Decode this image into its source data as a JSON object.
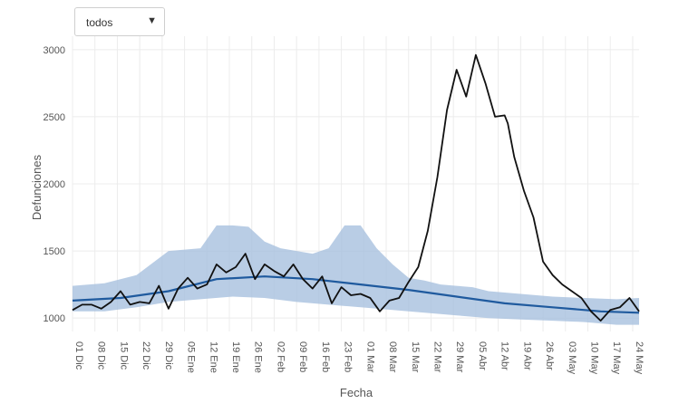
{
  "filter": {
    "selected": "todos",
    "arrow": "▼"
  },
  "chart_data": {
    "type": "line",
    "xlabel": "Fecha",
    "ylabel": "Defunciones",
    "ylim": [
      900,
      3100
    ],
    "grid": true,
    "y_ticks": [
      1000,
      1500,
      2000,
      2500,
      3000
    ],
    "x_ticks": [
      "01 Dic",
      "08 Dic",
      "15 Dic",
      "22 Dic",
      "29 Dic",
      "05 Ene",
      "12 Ene",
      "19 Ene",
      "26 Ene",
      "02 Feb",
      "09 Feb",
      "16 Feb",
      "23 Feb",
      "01 Mar",
      "08 Mar",
      "15 Mar",
      "22 Mar",
      "29 Mar",
      "05 Abr",
      "12 Abr",
      "19 Abr",
      "26 Abr",
      "03 May",
      "10 May",
      "17 May",
      "24 May"
    ],
    "x_day_range": [
      0,
      177
    ],
    "colors": {
      "observed": "#111111",
      "expected": "#1f5a9e",
      "band": "#a7c0de"
    },
    "series": [
      {
        "kind": "observed",
        "x": [
          0,
          3,
          6,
          9,
          12,
          15,
          18,
          21,
          24,
          27,
          30,
          33,
          36,
          39,
          42,
          45,
          48,
          51,
          54,
          57,
          60,
          63,
          66,
          69,
          72,
          75,
          78,
          81,
          84,
          87,
          90,
          93,
          96,
          99,
          102,
          105,
          108,
          111,
          114,
          117,
          120,
          123,
          126,
          129,
          132,
          135,
          136,
          138,
          141,
          144,
          147,
          150,
          153,
          156,
          159,
          162,
          165,
          168,
          171,
          174,
          177
        ],
        "values": [
          1060,
          1100,
          1100,
          1070,
          1120,
          1200,
          1100,
          1120,
          1110,
          1240,
          1070,
          1220,
          1300,
          1220,
          1250,
          1400,
          1340,
          1380,
          1480,
          1290,
          1400,
          1350,
          1310,
          1400,
          1290,
          1220,
          1310,
          1110,
          1230,
          1170,
          1180,
          1150,
          1050,
          1130,
          1150,
          1270,
          1380,
          1650,
          2050,
          2550,
          2850,
          2650,
          2960,
          2750,
          2500,
          2510,
          2450,
          2200,
          1950,
          1750,
          1420,
          1320,
          1250,
          1200,
          1150,
          1050,
          980,
          1060,
          1080,
          1150,
          1050
        ]
      },
      {
        "kind": "expected",
        "x": [
          0,
          15,
          30,
          45,
          60,
          75,
          90,
          105,
          120,
          135,
          150,
          165,
          177
        ],
        "values": [
          1130,
          1150,
          1200,
          1290,
          1310,
          1290,
          1250,
          1210,
          1160,
          1110,
          1080,
          1050,
          1040
        ]
      },
      {
        "kind": "band_upper",
        "x": [
          0,
          10,
          20,
          30,
          40,
          45,
          50,
          55,
          60,
          65,
          70,
          75,
          80,
          85,
          90,
          95,
          100,
          105,
          110,
          115,
          120,
          125,
          130,
          135,
          140,
          150,
          160,
          170,
          177
        ],
        "values": [
          1240,
          1260,
          1320,
          1500,
          1520,
          1690,
          1690,
          1680,
          1570,
          1520,
          1500,
          1480,
          1520,
          1690,
          1690,
          1520,
          1400,
          1300,
          1280,
          1250,
          1240,
          1230,
          1200,
          1190,
          1180,
          1160,
          1150,
          1140,
          1150
        ]
      },
      {
        "kind": "band_lower",
        "x": [
          0,
          10,
          20,
          30,
          40,
          50,
          60,
          70,
          80,
          90,
          100,
          110,
          120,
          130,
          140,
          150,
          160,
          170,
          177
        ],
        "values": [
          1050,
          1050,
          1080,
          1120,
          1140,
          1160,
          1150,
          1120,
          1100,
          1080,
          1060,
          1040,
          1020,
          1000,
          990,
          980,
          970,
          950,
          950
        ]
      }
    ]
  }
}
